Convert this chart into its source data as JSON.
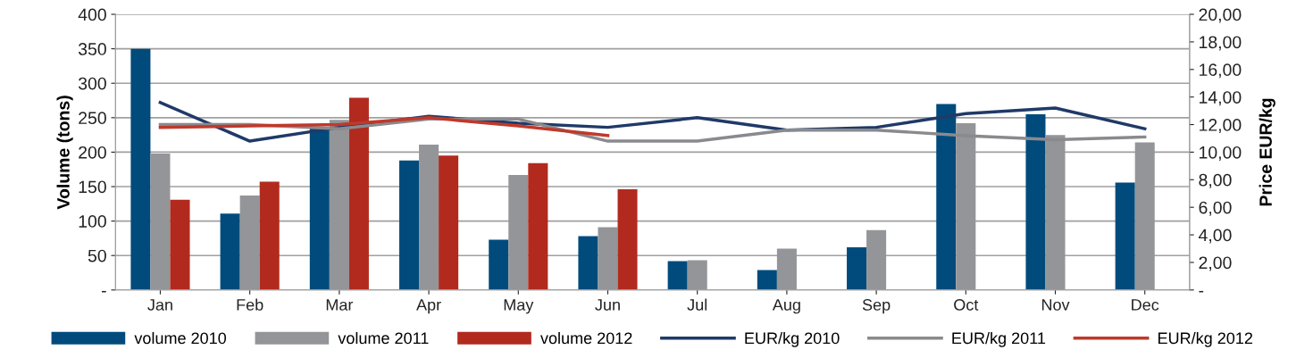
{
  "chart_data": {
    "type": "bar",
    "ylabel": "Volume (tons)",
    "y2label": "Price EUR/kg",
    "categories": [
      "Jan",
      "Feb",
      "Mar",
      "Apr",
      "May",
      "Jun",
      "Jul",
      "Aug",
      "Sep",
      "Oct",
      "Nov",
      "Dec"
    ],
    "series": [
      {
        "name": "volume 2010",
        "color": "#004b7c",
        "values": [
          350,
          111,
          235,
          188,
          73,
          78,
          42,
          29,
          62,
          270,
          255,
          156
        ]
      },
      {
        "name": "volume 2011",
        "color": "#939598",
        "values": [
          198,
          137,
          247,
          211,
          167,
          91,
          43,
          60,
          87,
          242,
          225,
          214
        ]
      },
      {
        "name": "volume 2012",
        "color": "#b22a1e",
        "values": [
          131,
          157,
          279,
          195,
          184,
          146,
          null,
          null,
          null,
          null,
          null,
          null
        ]
      },
      {
        "name": "EUR/kg 2010",
        "type": "line",
        "axis": "y2",
        "color": "#1f3a68",
        "values": [
          13.6,
          10.8,
          11.8,
          12.6,
          12.1,
          11.8,
          12.5,
          11.6,
          11.8,
          12.8,
          13.2,
          11.7
        ]
      },
      {
        "name": "EUR/kg 2011",
        "type": "line",
        "axis": "y2",
        "color": "#8a8a8e",
        "values": [
          12.0,
          12.0,
          11.7,
          12.4,
          12.4,
          10.8,
          10.8,
          11.6,
          11.6,
          11.2,
          10.9,
          11.1
        ]
      },
      {
        "name": "EUR/kg 2012",
        "type": "line",
        "axis": "y2",
        "color": "#c0392b",
        "values": [
          11.8,
          11.9,
          12.0,
          12.5,
          11.9,
          11.2,
          null,
          null,
          null,
          null,
          null,
          null
        ]
      }
    ],
    "ylim": [
      0,
      400
    ],
    "yticks": [
      {
        "value": 0,
        "label": "-"
      },
      50,
      100,
      150,
      200,
      250,
      300,
      350,
      400
    ],
    "y2lim": [
      0,
      20
    ],
    "y2ticks": [
      {
        "value": 0,
        "label": "-"
      },
      {
        "value": 2,
        "label": "2,00"
      },
      {
        "value": 4,
        "label": "4,00"
      },
      {
        "value": 6,
        "label": "6,00"
      },
      {
        "value": 8,
        "label": "8,00"
      },
      {
        "value": 10,
        "label": "10,00"
      },
      {
        "value": 12,
        "label": "12,00"
      },
      {
        "value": 14,
        "label": "14,00"
      },
      {
        "value": 16,
        "label": "16,00"
      },
      {
        "value": 18,
        "label": "18,00"
      },
      {
        "value": 20,
        "label": "20,00"
      }
    ],
    "grid": "y",
    "legend": "bottom",
    "marker": "none",
    "line_style": "solid"
  }
}
